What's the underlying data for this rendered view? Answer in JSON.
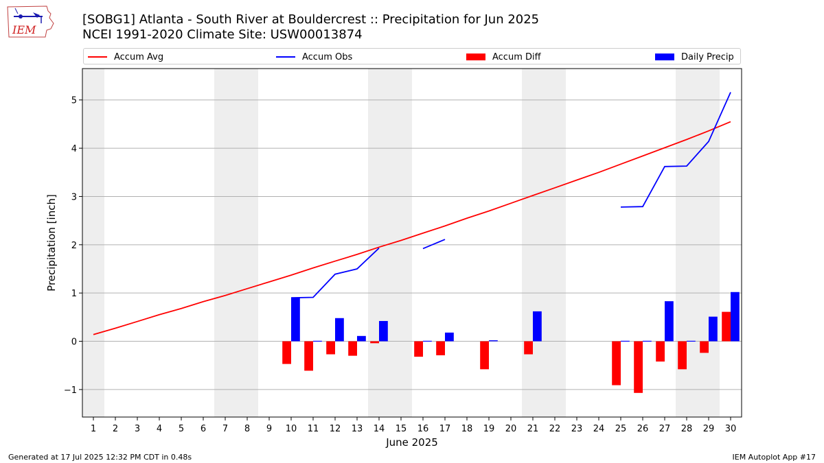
{
  "logo": {
    "text": "IEM"
  },
  "title": {
    "line1": "[SOBG1] Atlanta - South River at Bouldercrest :: Precipitation for Jun 2025",
    "line2": "NCEI 1991-2020 Climate Site: USW00013874"
  },
  "footer": {
    "left": "Generated at 17 Jul 2025 12:32 PM CDT in 0.48s",
    "right": "IEM Autoplot App #17"
  },
  "colors": {
    "avg": "#ff0000",
    "obs": "#0000ff",
    "diff": "#ff0000",
    "daily": "#0000ff",
    "weekend": "#eeeeee",
    "grid": "#b0b0b0"
  },
  "chart_data": {
    "type": "bar",
    "xlabel": "June 2025",
    "ylabel": "Precipitation [inch]",
    "ylim": [
      -1.57,
      5.65
    ],
    "xlim": [
      0.5,
      30.5
    ],
    "grid": "horizontal",
    "legend_placement": "top",
    "x": [
      1,
      2,
      3,
      4,
      5,
      6,
      7,
      8,
      9,
      10,
      11,
      12,
      13,
      14,
      15,
      16,
      17,
      18,
      19,
      20,
      21,
      22,
      23,
      24,
      25,
      26,
      27,
      28,
      29,
      30
    ],
    "x_tick_labels": [
      "1",
      "2",
      "3",
      "4",
      "5",
      "6",
      "7",
      "8",
      "9",
      "10",
      "11",
      "12",
      "13",
      "14",
      "15",
      "16",
      "17",
      "18",
      "19",
      "20",
      "21",
      "22",
      "23",
      "24",
      "25",
      "26",
      "27",
      "28",
      "29",
      "30"
    ],
    "y_ticks": [
      -1,
      0,
      1,
      2,
      3,
      4,
      5
    ],
    "y_tick_labels": [
      "−1",
      "0",
      "1",
      "2",
      "3",
      "4",
      "5"
    ],
    "weekend_days": [
      1,
      7,
      8,
      14,
      15,
      21,
      22,
      28,
      29
    ],
    "series": [
      {
        "name": "Accum Avg",
        "kind": "line",
        "values": [
          0.14,
          0.27,
          0.41,
          0.55,
          0.68,
          0.82,
          0.95,
          1.09,
          1.23,
          1.37,
          1.52,
          1.66,
          1.8,
          1.95,
          2.09,
          2.24,
          2.39,
          2.55,
          2.7,
          2.86,
          3.02,
          3.18,
          3.34,
          3.5,
          3.67,
          3.84,
          4.01,
          4.18,
          4.36,
          4.55
        ]
      },
      {
        "name": "Accum Obs",
        "kind": "line",
        "values": [
          null,
          null,
          null,
          null,
          null,
          null,
          null,
          null,
          null,
          0.9,
          0.91,
          1.39,
          1.5,
          1.93,
          null,
          1.92,
          2.11,
          null,
          null,
          null,
          null,
          null,
          null,
          null,
          2.78,
          2.79,
          3.62,
          3.63,
          4.14,
          5.16
        ]
      },
      {
        "name": "Accum Diff",
        "kind": "bar",
        "values": [
          null,
          null,
          null,
          null,
          null,
          null,
          null,
          null,
          null,
          -0.47,
          -0.61,
          -0.27,
          -0.3,
          -0.04,
          null,
          -0.32,
          -0.29,
          null,
          -0.58,
          null,
          -0.27,
          null,
          null,
          null,
          -0.91,
          -1.07,
          -0.42,
          -0.58,
          -0.24,
          0.61
        ]
      },
      {
        "name": "Daily Precip",
        "kind": "bar",
        "values": [
          null,
          null,
          null,
          null,
          null,
          null,
          null,
          null,
          null,
          0.9,
          0.01,
          0.48,
          0.11,
          0.42,
          null,
          0.01,
          0.18,
          null,
          0.02,
          null,
          0.62,
          null,
          null,
          null,
          0.01,
          0.01,
          0.83,
          0.01,
          0.51,
          1.02
        ]
      }
    ]
  }
}
